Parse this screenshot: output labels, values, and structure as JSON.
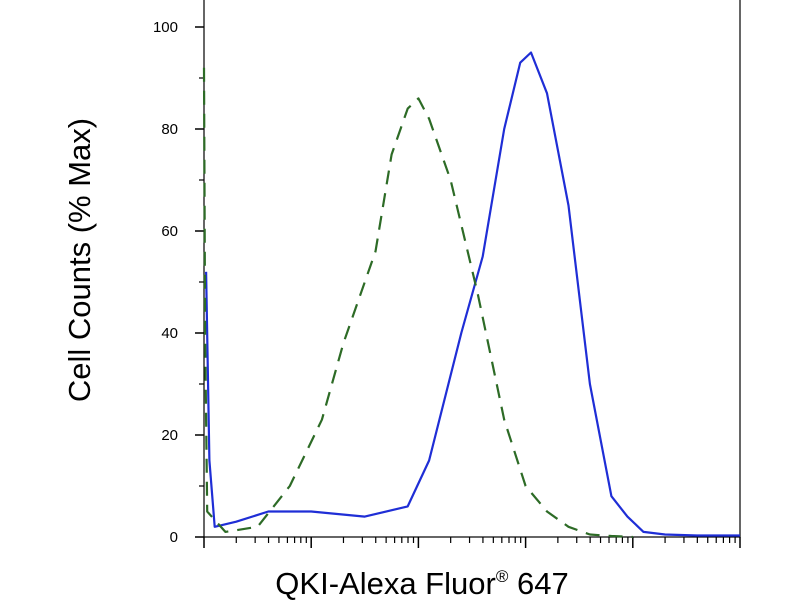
{
  "chart_data": {
    "type": "line",
    "title": "",
    "xlabel": "QKI-Alexa Fluor",
    "xlabel_superscript": "®",
    "xlabel_suffix": " 647",
    "ylabel": "Cell Counts (% Max)",
    "x_scale": "log",
    "xlim": [
      0,
      5
    ],
    "ylim": [
      0,
      100
    ],
    "y_ticks": [
      "0",
      "20",
      "40",
      "60",
      "80",
      "100"
    ],
    "grid": false,
    "legend": "none",
    "series": [
      {
        "color": "#1f2ed6",
        "dash": "solid",
        "x": [
          0.02,
          0.05,
          0.1,
          0.3,
          0.6,
          1.0,
          1.5,
          1.9,
          2.1,
          2.4,
          2.6,
          2.8,
          2.95,
          3.05,
          3.2,
          3.4,
          3.6,
          3.8,
          3.95,
          4.1,
          4.3,
          4.6,
          5.0
        ],
        "y": [
          52,
          15,
          2,
          3,
          5,
          5,
          4,
          6,
          15,
          40,
          55,
          80,
          93,
          95,
          87,
          65,
          30,
          8,
          4,
          1,
          0.5,
          0.3,
          0.3
        ]
      },
      {
        "color": "#2d6b26",
        "dash": "dashed",
        "x": [
          0.0,
          0.01,
          0.03,
          0.2,
          0.5,
          0.8,
          1.1,
          1.3,
          1.6,
          1.75,
          1.9,
          2.0,
          2.1,
          2.3,
          2.55,
          2.8,
          3.0,
          3.2,
          3.4,
          3.6,
          3.8,
          4.0
        ],
        "y": [
          92,
          40,
          5,
          1,
          2,
          10,
          23,
          38,
          56,
          75,
          84,
          86,
          82,
          70,
          48,
          23,
          10,
          5,
          2,
          0.5,
          0.2,
          0
        ]
      }
    ]
  }
}
